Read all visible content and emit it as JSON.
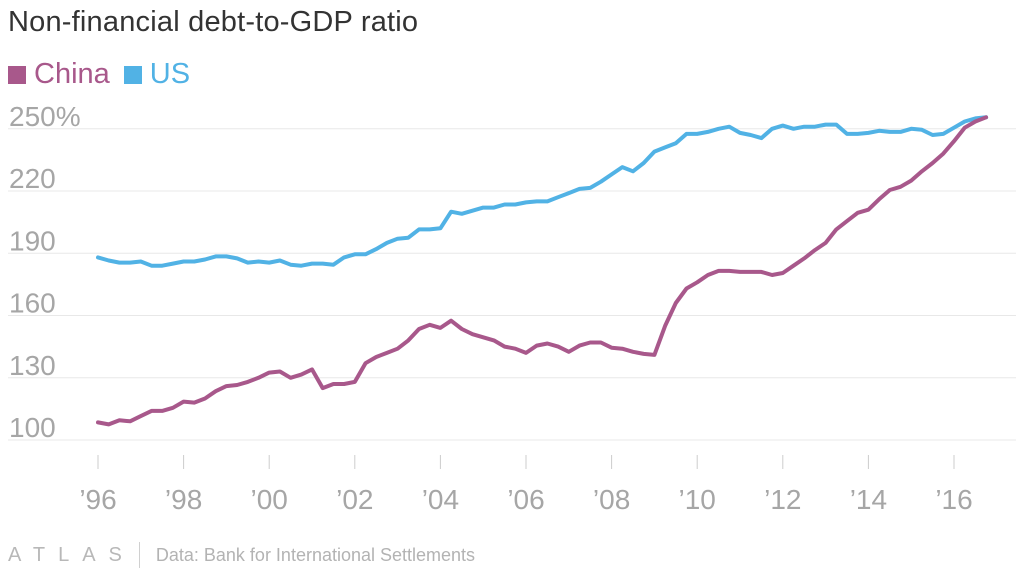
{
  "chart_data": {
    "type": "line",
    "title": "Non-financial debt-to-GDP ratio",
    "ylim": [
      95,
      258
    ],
    "xlim": [
      1996,
      2016.9
    ],
    "y_ticks": [
      {
        "value": 250,
        "label": "250%"
      },
      {
        "value": 220,
        "label": "220"
      },
      {
        "value": 190,
        "label": "190"
      },
      {
        "value": 160,
        "label": "160"
      },
      {
        "value": 130,
        "label": "130"
      },
      {
        "value": 100,
        "label": "100"
      }
    ],
    "x_ticks": [
      {
        "value": 1996,
        "label": "’96"
      },
      {
        "value": 1998,
        "label": "’98"
      },
      {
        "value": 2000,
        "label": "’00"
      },
      {
        "value": 2002,
        "label": "’02"
      },
      {
        "value": 2004,
        "label": "’04"
      },
      {
        "value": 2006,
        "label": "’06"
      },
      {
        "value": 2008,
        "label": "’08"
      },
      {
        "value": 2010,
        "label": "’10"
      },
      {
        "value": 2012,
        "label": "’12"
      },
      {
        "value": 2014,
        "label": "’14"
      },
      {
        "value": 2016,
        "label": "’16"
      }
    ],
    "grid": true,
    "legend_position": "top-left",
    "series": [
      {
        "name": "China",
        "color": "#a8588b",
        "points": [
          [
            1996.0,
            108.5
          ],
          [
            1996.25,
            107.5
          ],
          [
            1996.5,
            109.5
          ],
          [
            1996.75,
            109
          ],
          [
            1997.0,
            111.5
          ],
          [
            1997.25,
            114
          ],
          [
            1997.5,
            114
          ],
          [
            1997.75,
            115.5
          ],
          [
            1998.0,
            118.5
          ],
          [
            1998.25,
            118
          ],
          [
            1998.5,
            120
          ],
          [
            1998.75,
            123.5
          ],
          [
            1999.0,
            126
          ],
          [
            1999.25,
            126.5
          ],
          [
            1999.5,
            128
          ],
          [
            1999.75,
            130
          ],
          [
            2000.0,
            132.5
          ],
          [
            2000.25,
            133
          ],
          [
            2000.5,
            130
          ],
          [
            2000.75,
            131.5
          ],
          [
            2001.0,
            134
          ],
          [
            2001.25,
            125
          ],
          [
            2001.5,
            127
          ],
          [
            2001.75,
            127
          ],
          [
            2002.0,
            128
          ],
          [
            2002.25,
            137
          ],
          [
            2002.5,
            140
          ],
          [
            2002.75,
            142
          ],
          [
            2003.0,
            144
          ],
          [
            2003.25,
            148
          ],
          [
            2003.5,
            153.5
          ],
          [
            2003.75,
            155.5
          ],
          [
            2004.0,
            154
          ],
          [
            2004.25,
            157.5
          ],
          [
            2004.5,
            153.5
          ],
          [
            2004.75,
            151
          ],
          [
            2005.0,
            149.5
          ],
          [
            2005.25,
            148
          ],
          [
            2005.5,
            145
          ],
          [
            2005.75,
            144
          ],
          [
            2006.0,
            142
          ],
          [
            2006.25,
            145.5
          ],
          [
            2006.5,
            146.5
          ],
          [
            2006.75,
            145
          ],
          [
            2007.0,
            142.5
          ],
          [
            2007.25,
            145.5
          ],
          [
            2007.5,
            147
          ],
          [
            2007.75,
            147
          ],
          [
            2008.0,
            144.5
          ],
          [
            2008.25,
            144
          ],
          [
            2008.5,
            142.5
          ],
          [
            2008.75,
            141.5
          ],
          [
            2009.0,
            141
          ],
          [
            2009.25,
            155
          ],
          [
            2009.5,
            166
          ],
          [
            2009.75,
            173
          ],
          [
            2010.0,
            176
          ],
          [
            2010.25,
            179.5
          ],
          [
            2010.5,
            181.5
          ],
          [
            2010.75,
            181.5
          ],
          [
            2011.0,
            181
          ],
          [
            2011.25,
            181
          ],
          [
            2011.5,
            181
          ],
          [
            2011.75,
            179.5
          ],
          [
            2012.0,
            180.5
          ],
          [
            2012.25,
            184
          ],
          [
            2012.5,
            187.5
          ],
          [
            2012.75,
            191.5
          ],
          [
            2013.0,
            195
          ],
          [
            2013.25,
            201.5
          ],
          [
            2013.5,
            205.5
          ],
          [
            2013.75,
            209.5
          ],
          [
            2014.0,
            211
          ],
          [
            2014.25,
            216
          ],
          [
            2014.5,
            220.5
          ],
          [
            2014.75,
            222
          ],
          [
            2015.0,
            225
          ],
          [
            2015.25,
            229.5
          ],
          [
            2015.5,
            233.5
          ],
          [
            2015.75,
            238
          ],
          [
            2016.0,
            244
          ],
          [
            2016.25,
            250.5
          ],
          [
            2016.5,
            253.5
          ],
          [
            2016.75,
            255.5
          ]
        ]
      },
      {
        "name": "US",
        "color": "#51b2e5",
        "points": [
          [
            1996.0,
            188
          ],
          [
            1996.25,
            186.5
          ],
          [
            1996.5,
            185.5
          ],
          [
            1996.75,
            185.5
          ],
          [
            1997.0,
            186
          ],
          [
            1997.25,
            184
          ],
          [
            1997.5,
            184
          ],
          [
            1997.75,
            185
          ],
          [
            1998.0,
            186
          ],
          [
            1998.25,
            186
          ],
          [
            1998.5,
            187
          ],
          [
            1998.75,
            188.5
          ],
          [
            1999.0,
            188.5
          ],
          [
            1999.25,
            187.5
          ],
          [
            1999.5,
            185.5
          ],
          [
            1999.75,
            186
          ],
          [
            2000.0,
            185.5
          ],
          [
            2000.25,
            186.5
          ],
          [
            2000.5,
            184.5
          ],
          [
            2000.75,
            184
          ],
          [
            2001.0,
            185
          ],
          [
            2001.25,
            185
          ],
          [
            2001.5,
            184.5
          ],
          [
            2001.75,
            188
          ],
          [
            2002.0,
            189.5
          ],
          [
            2002.25,
            189.5
          ],
          [
            2002.5,
            192
          ],
          [
            2002.75,
            195
          ],
          [
            2003.0,
            197
          ],
          [
            2003.25,
            197.5
          ],
          [
            2003.5,
            201.5
          ],
          [
            2003.75,
            201.5
          ],
          [
            2004.0,
            202
          ],
          [
            2004.25,
            210
          ],
          [
            2004.5,
            209
          ],
          [
            2004.75,
            210.5
          ],
          [
            2005.0,
            212
          ],
          [
            2005.25,
            212
          ],
          [
            2005.5,
            213.5
          ],
          [
            2005.75,
            213.5
          ],
          [
            2006.0,
            214.5
          ],
          [
            2006.25,
            215
          ],
          [
            2006.5,
            215
          ],
          [
            2006.75,
            217
          ],
          [
            2007.0,
            219
          ],
          [
            2007.25,
            221
          ],
          [
            2007.5,
            221.5
          ],
          [
            2007.75,
            224.5
          ],
          [
            2008.0,
            228
          ],
          [
            2008.25,
            231.5
          ],
          [
            2008.5,
            229.5
          ],
          [
            2008.75,
            233.5
          ],
          [
            2009.0,
            239
          ],
          [
            2009.25,
            241
          ],
          [
            2009.5,
            243
          ],
          [
            2009.75,
            247.5
          ],
          [
            2010.0,
            247.5
          ],
          [
            2010.25,
            248.5
          ],
          [
            2010.5,
            250
          ],
          [
            2010.75,
            251
          ],
          [
            2011.0,
            248
          ],
          [
            2011.25,
            247
          ],
          [
            2011.5,
            245.5
          ],
          [
            2011.75,
            250
          ],
          [
            2012.0,
            251.5
          ],
          [
            2012.25,
            250
          ],
          [
            2012.5,
            251
          ],
          [
            2012.75,
            251
          ],
          [
            2013.0,
            252
          ],
          [
            2013.25,
            252
          ],
          [
            2013.5,
            247.5
          ],
          [
            2013.75,
            247.5
          ],
          [
            2014.0,
            248
          ],
          [
            2014.25,
            249
          ],
          [
            2014.5,
            248.5
          ],
          [
            2014.75,
            248.5
          ],
          [
            2015.0,
            250
          ],
          [
            2015.25,
            249.5
          ],
          [
            2015.5,
            247
          ],
          [
            2015.75,
            247.5
          ],
          [
            2016.0,
            250.5
          ],
          [
            2016.25,
            253.5
          ],
          [
            2016.5,
            255
          ],
          [
            2016.75,
            255.5
          ]
        ]
      }
    ]
  },
  "footer": {
    "brand": "ATLAS",
    "source": "Data: Bank for International Settlements"
  }
}
